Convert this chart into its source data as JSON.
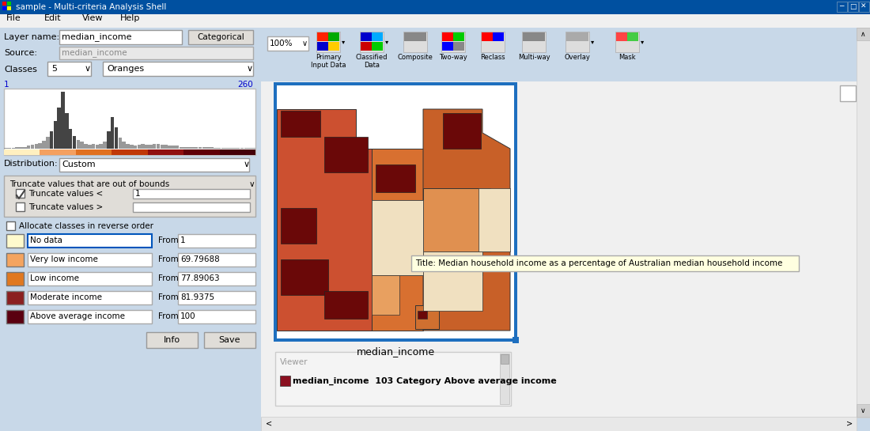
{
  "title_bar": "sample - Multi-criteria Analysis Shell",
  "menu_items": [
    "File",
    "Edit",
    "View",
    "Help"
  ],
  "layer_name": "median_income",
  "layer_name_label": "Layer name:",
  "categorical_btn": "Categorical",
  "source_label": "Source:",
  "source_val": "median_income",
  "classes_label": "Classes",
  "classes_val": "5",
  "colormap_val": "Oranges",
  "range_left": "1",
  "range_right": "260",
  "distribution_label": "Distribution:",
  "distribution_val": "Custom",
  "truncate_header": "Truncate values that are out of bounds",
  "truncate1_label": "Truncate values <",
  "truncate1_val": "1",
  "truncate2_label": "Truncate values >",
  "allocate_label": "Allocate classes in reverse order",
  "classes_data": [
    {
      "color": "#FFFACD",
      "name": "No data",
      "from_val": "1"
    },
    {
      "color": "#F4A460",
      "name": "Very low income",
      "from_val": "69.79688"
    },
    {
      "color": "#E07820",
      "name": "Low income",
      "from_val": "77.89063"
    },
    {
      "color": "#8B2020",
      "name": "Moderate income",
      "from_val": "81.9375"
    },
    {
      "color": "#5A0010",
      "name": "Above average income",
      "from_val": "100"
    }
  ],
  "info_btn": "Info",
  "save_btn": "Save",
  "zoom_val": "100%",
  "map_label": "median_income",
  "tooltip_text": "Title: Median household income as a percentage of Australian median household income",
  "viewer_label": "Viewer",
  "viewer_color": "#8B1020",
  "viewer_text": "median_income  103 Category Above average income",
  "bg_color": "#C8D8E8",
  "right_bg": "#F0F0F0",
  "white": "#FFFFFF",
  "map_border_color": "#1E6FBF",
  "tooltip_bg": "#FFFFE0",
  "titlebar_color": "#0050A0",
  "panel_dark": "#C8D8E8",
  "btn_bg": "#E0DDD8",
  "field_bg": "#FFFFFF",
  "field_disabled": "#E8E8E8"
}
